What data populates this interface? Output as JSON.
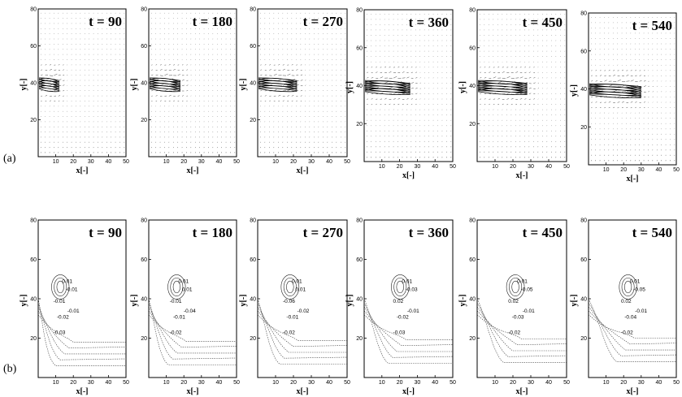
{
  "row_labels": {
    "a": "(a)",
    "b": "(b)"
  },
  "chart_data": [
    {
      "type": "scatter",
      "row": "a",
      "description_kind": "velocity-vector-field",
      "panels": [
        "t = 90",
        "t = 180",
        "t = 270",
        "t = 360",
        "t = 450",
        "t = 540"
      ],
      "xlabel": "x[-]",
      "ylabel": "y[-]",
      "xlim": [
        0,
        50
      ],
      "ylim": [
        0,
        80
      ],
      "xticks": [
        10,
        20,
        30,
        40,
        50
      ],
      "yticks": [
        20,
        40,
        60,
        80
      ],
      "jet_origin": {
        "x": 0,
        "y": 40
      },
      "jet_tip_x": [
        12,
        18,
        22,
        26,
        28,
        30
      ]
    },
    {
      "type": "line",
      "row": "b",
      "description_kind": "contour-plot",
      "panels": [
        "t = 90",
        "t = 180",
        "t = 270",
        "t = 360",
        "t = 450",
        "t = 540"
      ],
      "xlabel": "x[-]",
      "ylabel": "y[-]",
      "xlim": [
        0,
        50
      ],
      "ylim": [
        0,
        80
      ],
      "xticks": [
        10,
        20,
        30,
        40,
        50
      ],
      "yticks": [
        20,
        40,
        60,
        80
      ],
      "contour_labels": [
        [
          "0.01",
          "-0.01",
          "-0.01",
          "-0.02",
          "-0.03",
          "-0.01"
        ],
        [
          "0.01",
          "-0.01",
          "0.01",
          "-0.01",
          "-0.02",
          "-0.04"
        ],
        [
          "0.01",
          "-0.06",
          "0.01",
          "-0.01",
          "-0.02",
          "-0.02"
        ],
        [
          "0.01",
          "0.02",
          "-0.03",
          "-0.02",
          "-0.03",
          "-0.01"
        ],
        [
          "0.01",
          "0.02",
          "-0.05",
          "-0.03",
          "-0.02",
          "-0.01"
        ],
        [
          "0.01",
          "0.02",
          "-0.05",
          "-0.04",
          "-0.02",
          "-0.01"
        ]
      ]
    }
  ]
}
